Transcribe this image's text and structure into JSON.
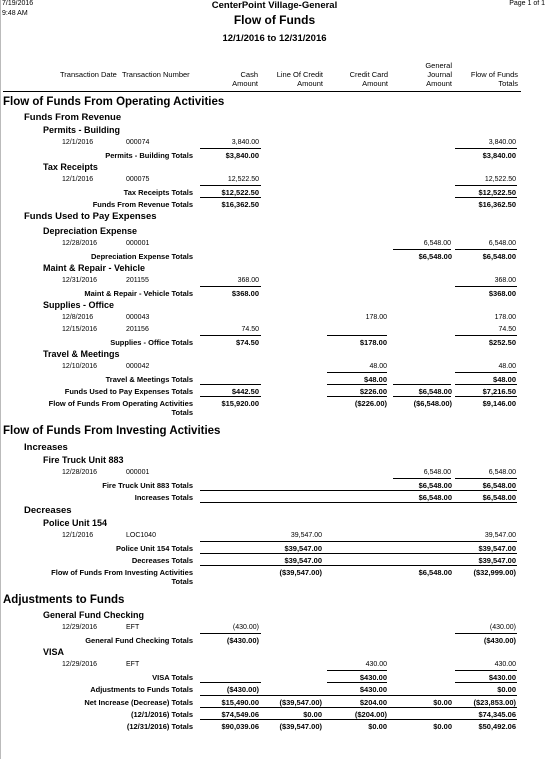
{
  "header": {
    "date": "7/19/2016",
    "time": "9:48 AM",
    "org": "CenterPoint Village-General",
    "title": "Flow of Funds",
    "range": "12/1/2016 to 12/31/2016",
    "page": "Page 1 of 1"
  },
  "columns": {
    "tdate": "Transaction Date",
    "tnum": "Transaction Number",
    "cash": "Cash Amount",
    "loc": "Line Of Credit Amount",
    "cc": "Credit Card Amount",
    "gj": "General Journal Amount",
    "flow": "Flow of Funds Totals"
  },
  "operating": {
    "title": "Flow of Funds From Operating Activities",
    "revenue": {
      "title": "Funds From Revenue",
      "permits": {
        "title": "Permits - Building",
        "row": {
          "date": "12/1/2016",
          "num": "000074",
          "cash": "3,840.00",
          "flow": "3,840.00"
        },
        "total": {
          "label": "Permits - Building Totals",
          "cash": "$3,840.00",
          "flow": "$3,840.00"
        }
      },
      "tax": {
        "title": "Tax Receipts",
        "row": {
          "date": "12/1/2016",
          "num": "000075",
          "cash": "12,522.50",
          "flow": "12,522.50"
        },
        "total": {
          "label": "Tax Receipts Totals",
          "cash": "$12,522.50",
          "flow": "$12,522.50"
        }
      },
      "total": {
        "label": "Funds From Revenue Totals",
        "cash": "$16,362.50",
        "flow": "$16,362.50"
      }
    },
    "used": {
      "title": "Funds Used to Pay Expenses",
      "dep": {
        "title": "Depreciation Expense",
        "row": {
          "date": "12/28/2016",
          "num": "000001",
          "gj": "6,548.00",
          "flow": "6,548.00"
        },
        "total": {
          "label": "Depreciation Expense Totals",
          "gj": "$6,548.00",
          "flow": "$6,548.00"
        }
      },
      "maint": {
        "title": "Maint & Repair - Vehicle",
        "row": {
          "date": "12/31/2016",
          "num": "201155",
          "cash": "368.00",
          "flow": "368.00"
        },
        "total": {
          "label": "Maint & Repair - Vehicle Totals",
          "cash": "$368.00",
          "flow": "$368.00"
        }
      },
      "supplies": {
        "title": "Supplies - Office",
        "row1": {
          "date": "12/8/2016",
          "num": "000043",
          "cc": "178.00",
          "flow": "178.00"
        },
        "row2": {
          "date": "12/15/2016",
          "num": "201156",
          "cash": "74.50",
          "flow": "74.50"
        },
        "total": {
          "label": "Supplies - Office Totals",
          "cash": "$74.50",
          "cc": "$178.00",
          "flow": "$252.50"
        }
      },
      "travel": {
        "title": "Travel & Meetings",
        "row": {
          "date": "12/10/2016",
          "num": "000042",
          "cc": "48.00",
          "flow": "48.00"
        },
        "total": {
          "label": "Travel & Meetings Totals",
          "cc": "$48.00",
          "flow": "$48.00"
        }
      },
      "total": {
        "label": "Funds Used to Pay Expenses Totals",
        "cash": "$442.50",
        "cc": "$226.00",
        "gj": "$6,548.00",
        "flow": "$7,216.50"
      }
    },
    "total": {
      "label1": "Flow of Funds From Operating Activities",
      "label2": "Totals",
      "cash": "$15,920.00",
      "cc": "($226.00)",
      "gj": "($6,548.00)",
      "flow": "$9,146.00"
    }
  },
  "investing": {
    "title": "Flow of Funds From Investing Activities",
    "increases": {
      "title": "Increases",
      "truck": {
        "title": "Fire Truck Unit 883",
        "row": {
          "date": "12/28/2016",
          "num": "000001",
          "gj": "6,548.00",
          "flow": "6,548.00"
        },
        "total": {
          "label": "Fire Truck Unit 883 Totals",
          "gj": "$6,548.00",
          "flow": "$6,548.00"
        }
      },
      "total": {
        "label": "Increases Totals",
        "gj": "$6,548.00",
        "flow": "$6,548.00"
      }
    },
    "decreases": {
      "title": "Decreases",
      "police": {
        "title": "Police Unit 154",
        "row": {
          "date": "12/1/2016",
          "num": "LOC1040",
          "loc": "39,547.00",
          "flow": "39,547.00"
        },
        "total": {
          "label": "Police Unit 154 Totals",
          "loc": "$39,547.00",
          "flow": "$39,547.00"
        }
      },
      "total": {
        "label": "Decreases Totals",
        "loc": "$39,547.00",
        "flow": "$39,547.00"
      }
    },
    "total": {
      "label1": "Flow of Funds From Investing Activities",
      "label2": "Totals",
      "loc": "($39,547.00)",
      "gj": "$6,548.00",
      "flow": "($32,999.00)"
    }
  },
  "adjustments": {
    "title": "Adjustments to Funds",
    "gfc": {
      "title": "General Fund Checking",
      "row": {
        "date": "12/29/2016",
        "num": "EFT",
        "cash": "(430.00)",
        "flow": "(430.00)"
      },
      "total": {
        "label": "General Fund Checking Totals",
        "cash": "($430.00)",
        "flow": "($430.00)"
      }
    },
    "visa": {
      "title": "VISA",
      "row": {
        "date": "12/29/2016",
        "num": "EFT",
        "cc": "430.00",
        "flow": "430.00"
      },
      "total": {
        "label": "VISA Totals",
        "cc": "$430.00",
        "flow": "$430.00"
      }
    },
    "total": {
      "label": "Adjustments to Funds Totals",
      "cash": "($430.00)",
      "cc": "$430.00",
      "flow": "$0.00"
    }
  },
  "summary": {
    "net": {
      "label": "Net Increase (Decrease) Totals",
      "cash": "$15,490.00",
      "loc": "($39,547.00)",
      "cc": "$204.00",
      "gj": "$0.00",
      "flow": "($23,853.00)"
    },
    "begin": {
      "label": "(12/1/2016) Totals",
      "cash": "$74,549.06",
      "loc": "$0.00",
      "cc": "($204.00)",
      "flow": "$74,345.06"
    },
    "end": {
      "label": "(12/31/2016) Totals",
      "cash": "$90,039.06",
      "loc": "($39,547.00)",
      "cc": "$0.00",
      "gj": "$0.00",
      "flow": "$50,492.06"
    }
  }
}
